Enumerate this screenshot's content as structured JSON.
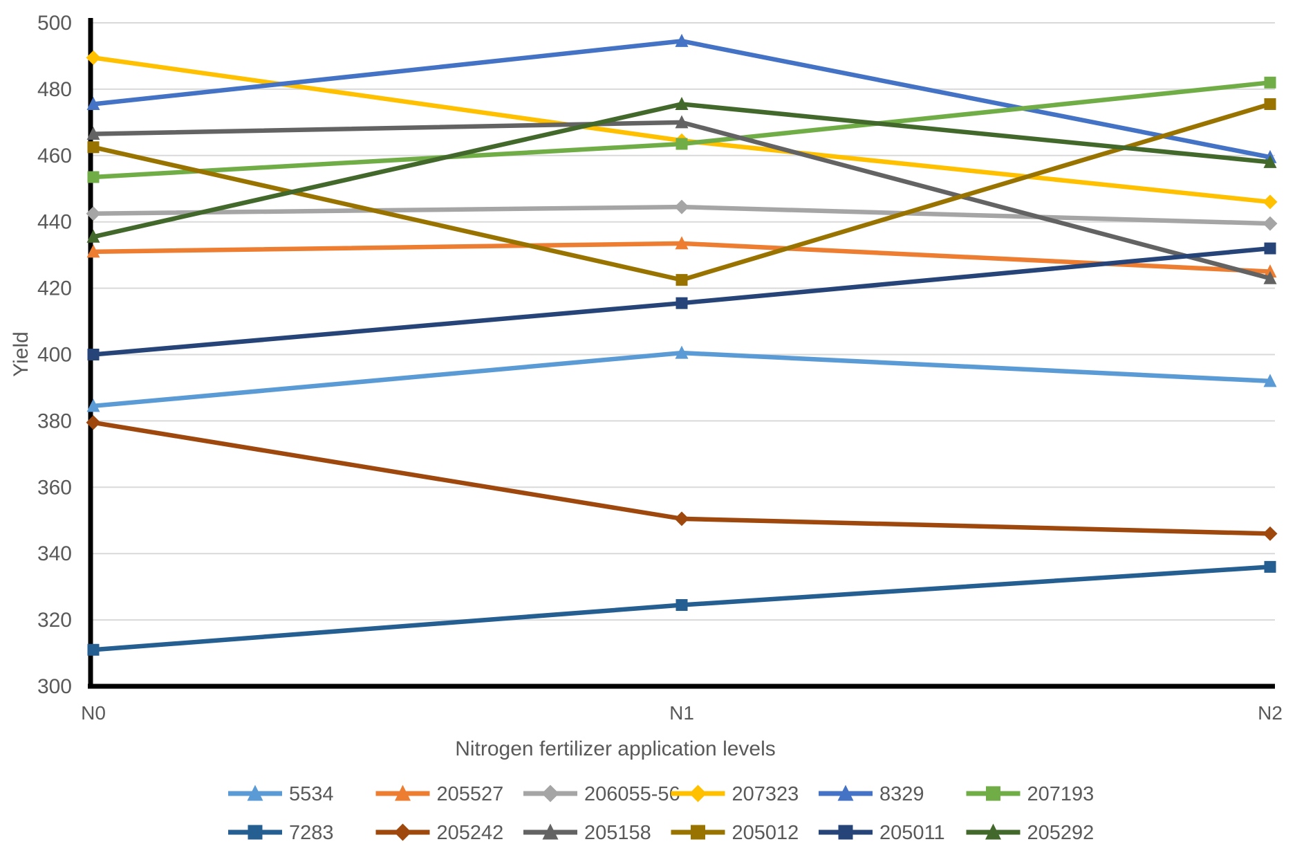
{
  "chart_data": {
    "type": "line",
    "title": "",
    "xlabel": "Nitrogen fertilizer application levels",
    "ylabel": "Yield",
    "categories": [
      "N0",
      "N1",
      "N2"
    ],
    "ylim": [
      300,
      500
    ],
    "y_ticks": [
      300,
      320,
      340,
      360,
      380,
      400,
      420,
      440,
      460,
      480,
      500
    ],
    "grid": true,
    "legend_position": "bottom",
    "series": [
      {
        "name": "5534",
        "color": "#5B9BD5",
        "marker": "triangle",
        "values": [
          384.5,
          400.5,
          392
        ]
      },
      {
        "name": "205527",
        "color": "#ED7D31",
        "marker": "triangle",
        "values": [
          431,
          433.5,
          425
        ]
      },
      {
        "name": "206055-56",
        "color": "#A5A5A5",
        "marker": "diamond",
        "values": [
          442.5,
          444.5,
          439.5
        ]
      },
      {
        "name": "207323",
        "color": "#FFC000",
        "marker": "diamond",
        "values": [
          489.5,
          464.5,
          446
        ]
      },
      {
        "name": "8329",
        "color": "#4472C4",
        "marker": "triangle",
        "values": [
          475.5,
          494.5,
          459.5
        ]
      },
      {
        "name": "207193",
        "color": "#70AD47",
        "marker": "square",
        "values": [
          453.5,
          463.5,
          482
        ]
      },
      {
        "name": "7283",
        "color": "#255E91",
        "marker": "square",
        "values": [
          311,
          324.5,
          336
        ]
      },
      {
        "name": "205242",
        "color": "#9E480E",
        "marker": "diamond",
        "values": [
          379.5,
          350.5,
          346
        ]
      },
      {
        "name": "205158",
        "color": "#636363",
        "marker": "triangle",
        "values": [
          466.5,
          470,
          423
        ]
      },
      {
        "name": "205012",
        "color": "#997300",
        "marker": "square",
        "values": [
          462.5,
          422.5,
          475.5
        ]
      },
      {
        "name": "205011",
        "color": "#264478",
        "marker": "square",
        "values": [
          400,
          415.5,
          432
        ]
      },
      {
        "name": "205292",
        "color": "#43682B",
        "marker": "triangle",
        "values": [
          435.5,
          475.5,
          458
        ]
      }
    ],
    "legend_rows": [
      [
        "5534",
        "205527",
        "206055-56",
        "207323",
        "8329",
        "207193"
      ],
      [
        "7283",
        "205242",
        "205158",
        "205012",
        "205011",
        "205292"
      ]
    ]
  },
  "colors": {
    "grid": "#D9D9D9",
    "axis": "#000000",
    "text": "#595959"
  }
}
